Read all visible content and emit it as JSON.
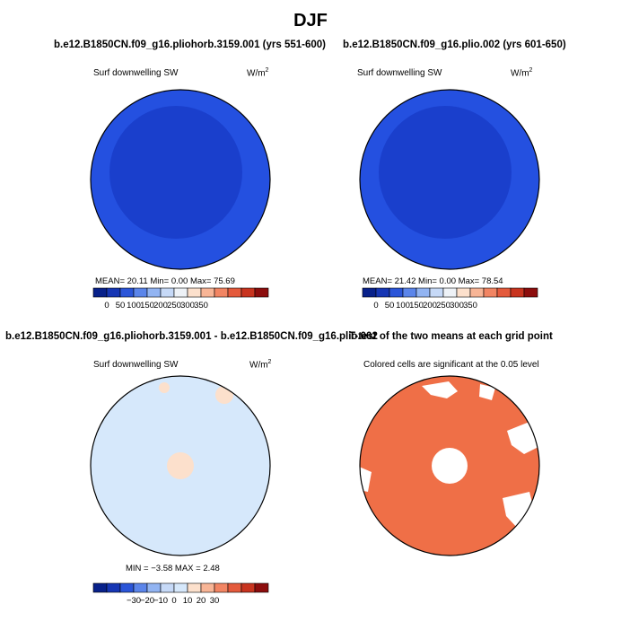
{
  "main_title": "DJF",
  "panels": {
    "top_left": {
      "title": "b.e12.B1850CN.f09_g16.pliohorb.3159.001 (yrs 551-600)",
      "variable": "Surf downwelling SW",
      "units": "W/m",
      "units_sup": "2",
      "stats": "MEAN=  20.11  Min=    0.00  Max=  75.69"
    },
    "top_right": {
      "title": "b.e12.B1850CN.f09_g16.plio.002 (yrs 601-650)",
      "variable": "Surf downwelling SW",
      "units": "W/m",
      "units_sup": "2",
      "stats": "MEAN=  21.42  Min=    0.00  Max=  78.54"
    },
    "bottom_left": {
      "title": "b.e12.B1850CN.f09_g16.pliohorb.3159.001 - b.e12.B1850CN.f09_g16.plio.002",
      "variable": "Surf downwelling SW",
      "units": "W/m",
      "units_sup": "2",
      "stats": "MIN =  −3.58  MAX =    2.48"
    },
    "bottom_right": {
      "title": "T-test of the two means at each grid point",
      "subtitle": "Colored cells are significant at the 0.05 level"
    }
  },
  "colors": {
    "map_inner": "#1a3fcc",
    "map_outer": "#2450e0",
    "diff_background": "#d6e8fb",
    "diff_positive": "#fce0cc",
    "ttest_significant": "#ef6f47",
    "ttest_insignificant": "#ffffff"
  },
  "chart_data": [
    {
      "type": "colorbar",
      "name": "absolute-field",
      "colors": [
        "#08218a",
        "#1636b4",
        "#2b55d8",
        "#5b85ea",
        "#92b4f2",
        "#c6d9f7",
        "#eef2f7",
        "#fce0cc",
        "#f8b596",
        "#f28563",
        "#e45a3c",
        "#c8341f",
        "#8c0d0d"
      ],
      "tick_labels": [
        "0",
        "50",
        "100",
        "150",
        "200",
        "250",
        "300",
        "350"
      ]
    },
    {
      "type": "colorbar",
      "name": "difference-field",
      "colors": [
        "#08218a",
        "#1636b4",
        "#2b55d8",
        "#5b85ea",
        "#92b4f2",
        "#c6d9f7",
        "#d6e8fb",
        "#fce0cc",
        "#f8b596",
        "#f28563",
        "#e45a3c",
        "#c8341f",
        "#8c0d0d"
      ],
      "tick_labels": [
        "−30",
        "−20",
        "−10",
        "0",
        "10",
        "20",
        "30"
      ]
    }
  ]
}
